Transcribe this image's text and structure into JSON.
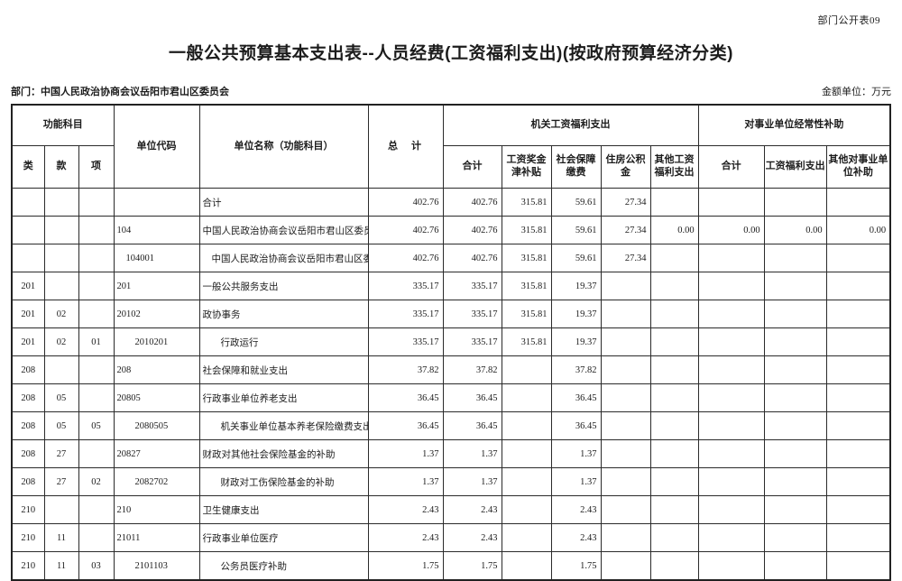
{
  "page": {
    "corner_label": "部门公开表09",
    "title": "一般公共预算基本支出表--人员经费(工资福利支出)(按政府预算经济分类)",
    "department": "部门：中国人民政治协商会议岳阳市君山区委员会",
    "amount_unit": "金额单位：万元"
  },
  "table": {
    "headers": {
      "func_group": "功能科目",
      "func_cols": [
        "类",
        "款",
        "项"
      ],
      "unit_code": "单位代码",
      "unit_name": "单位名称（功能科目）",
      "grand_total": "总　计",
      "org_group": "机关工资福利支出",
      "org_cols": [
        "合计",
        "工资奖金津补贴",
        "社会保障缴费",
        "住房公积金",
        "其他工资福利支出"
      ],
      "subsidy_group": "对事业单位经常性补助",
      "subsidy_cols": [
        "合计",
        "工资福利支出",
        "其他对事业单位补助"
      ]
    },
    "rows": [
      {
        "indent": 0,
        "cells": [
          "",
          "",
          "",
          "",
          "合计",
          "402.76",
          "402.76",
          "315.81",
          "59.61",
          "27.34",
          "",
          "",
          "",
          ""
        ]
      },
      {
        "indent": 0,
        "cells": [
          "",
          "",
          "",
          "104",
          "中国人民政治协商会议岳阳市君山区委员会",
          "402.76",
          "402.76",
          "315.81",
          "59.61",
          "27.34",
          "0.00",
          "0.00",
          "0.00",
          "0.00"
        ]
      },
      {
        "indent": 1,
        "cells": [
          "",
          "",
          "",
          "104001",
          "中国人民政治协商会议岳阳市君山区委员会",
          "402.76",
          "402.76",
          "315.81",
          "59.61",
          "27.34",
          "",
          "",
          "",
          ""
        ]
      },
      {
        "indent": 0,
        "cells": [
          "201",
          "",
          "",
          "201",
          "一般公共服务支出",
          "335.17",
          "335.17",
          "315.81",
          "19.37",
          "",
          "",
          "",
          "",
          ""
        ]
      },
      {
        "indent": 0,
        "cells": [
          "201",
          "02",
          "",
          "20102",
          "政协事务",
          "335.17",
          "335.17",
          "315.81",
          "19.37",
          "",
          "",
          "",
          "",
          ""
        ]
      },
      {
        "indent": 2,
        "cells": [
          "201",
          "02",
          "01",
          "2010201",
          "行政运行",
          "335.17",
          "335.17",
          "315.81",
          "19.37",
          "",
          "",
          "",
          "",
          ""
        ]
      },
      {
        "indent": 0,
        "cells": [
          "208",
          "",
          "",
          "208",
          "社会保障和就业支出",
          "37.82",
          "37.82",
          "",
          "37.82",
          "",
          "",
          "",
          "",
          ""
        ]
      },
      {
        "indent": 0,
        "cells": [
          "208",
          "05",
          "",
          "20805",
          "行政事业单位养老支出",
          "36.45",
          "36.45",
          "",
          "36.45",
          "",
          "",
          "",
          "",
          ""
        ]
      },
      {
        "indent": 2,
        "cells": [
          "208",
          "05",
          "05",
          "2080505",
          "机关事业单位基本养老保险缴费支出",
          "36.45",
          "36.45",
          "",
          "36.45",
          "",
          "",
          "",
          "",
          ""
        ]
      },
      {
        "indent": 0,
        "cells": [
          "208",
          "27",
          "",
          "20827",
          "财政对其他社会保险基金的补助",
          "1.37",
          "1.37",
          "",
          "1.37",
          "",
          "",
          "",
          "",
          ""
        ]
      },
      {
        "indent": 2,
        "cells": [
          "208",
          "27",
          "02",
          "2082702",
          "财政对工伤保险基金的补助",
          "1.37",
          "1.37",
          "",
          "1.37",
          "",
          "",
          "",
          "",
          ""
        ]
      },
      {
        "indent": 0,
        "cells": [
          "210",
          "",
          "",
          "210",
          "卫生健康支出",
          "2.43",
          "2.43",
          "",
          "2.43",
          "",
          "",
          "",
          "",
          ""
        ]
      },
      {
        "indent": 0,
        "cells": [
          "210",
          "11",
          "",
          "21011",
          "行政事业单位医疗",
          "2.43",
          "2.43",
          "",
          "2.43",
          "",
          "",
          "",
          "",
          ""
        ]
      },
      {
        "indent": 2,
        "cells": [
          "210",
          "11",
          "03",
          "2101103",
          "公务员医疗补助",
          "1.75",
          "1.75",
          "",
          "1.75",
          "",
          "",
          "",
          "",
          ""
        ]
      }
    ]
  }
}
